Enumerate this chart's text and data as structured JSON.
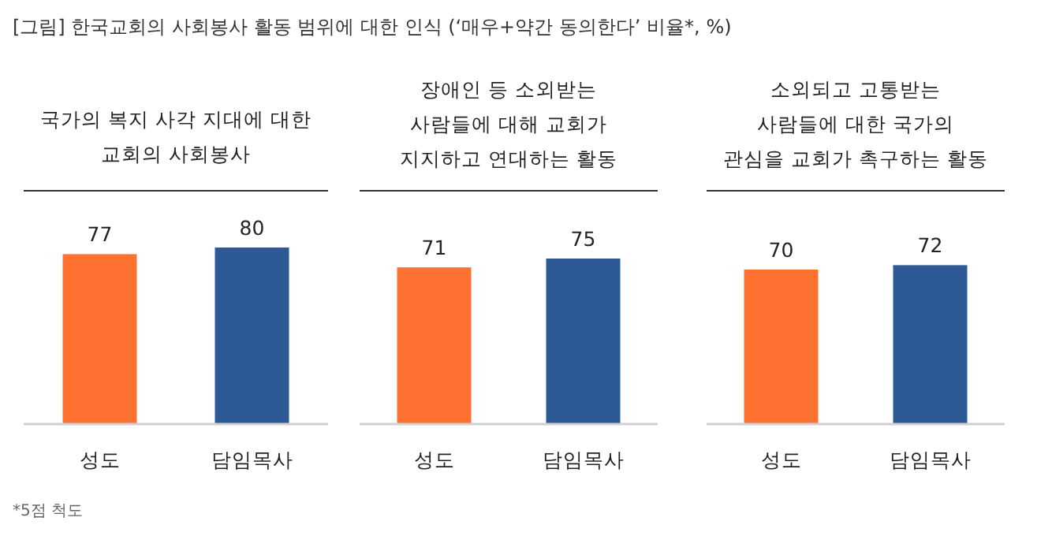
{
  "chart_data": [
    {
      "type": "other",
      "title": "[그림] 한국교회의 사회봉사 활동 범위에 대한 인식 (‘매우+약간 동의한다’ 비율*, %)",
      "annotations": [
        "*5점 척도"
      ]
    },
    {
      "type": "bar",
      "title": "국가의 복지 사각 지대에 대한\n교회의 사회봉사",
      "categories": [
        "성도",
        "담임목사"
      ],
      "values": [
        77,
        80
      ],
      "colors": [
        "#ff7130",
        "#2d5996"
      ],
      "data_labels": true
    },
    {
      "type": "bar",
      "title": "장애인 등 소외받는\n사람들에 대해 교회가\n지지하고 연대하는 활동",
      "categories": [
        "성도",
        "담임목사"
      ],
      "values": [
        71,
        75
      ],
      "colors": [
        "#ff7130",
        "#2d5996"
      ],
      "data_labels": true
    },
    {
      "type": "bar",
      "title": "소외되고 고통받는\n사람들에 대한 국가의\n관심을 교회가 촉구하는 활동",
      "categories": [
        "성도",
        "담임목사"
      ],
      "values": [
        70,
        72
      ],
      "colors": [
        "#ff7130",
        "#2d5996"
      ],
      "data_labels": true
    }
  ]
}
